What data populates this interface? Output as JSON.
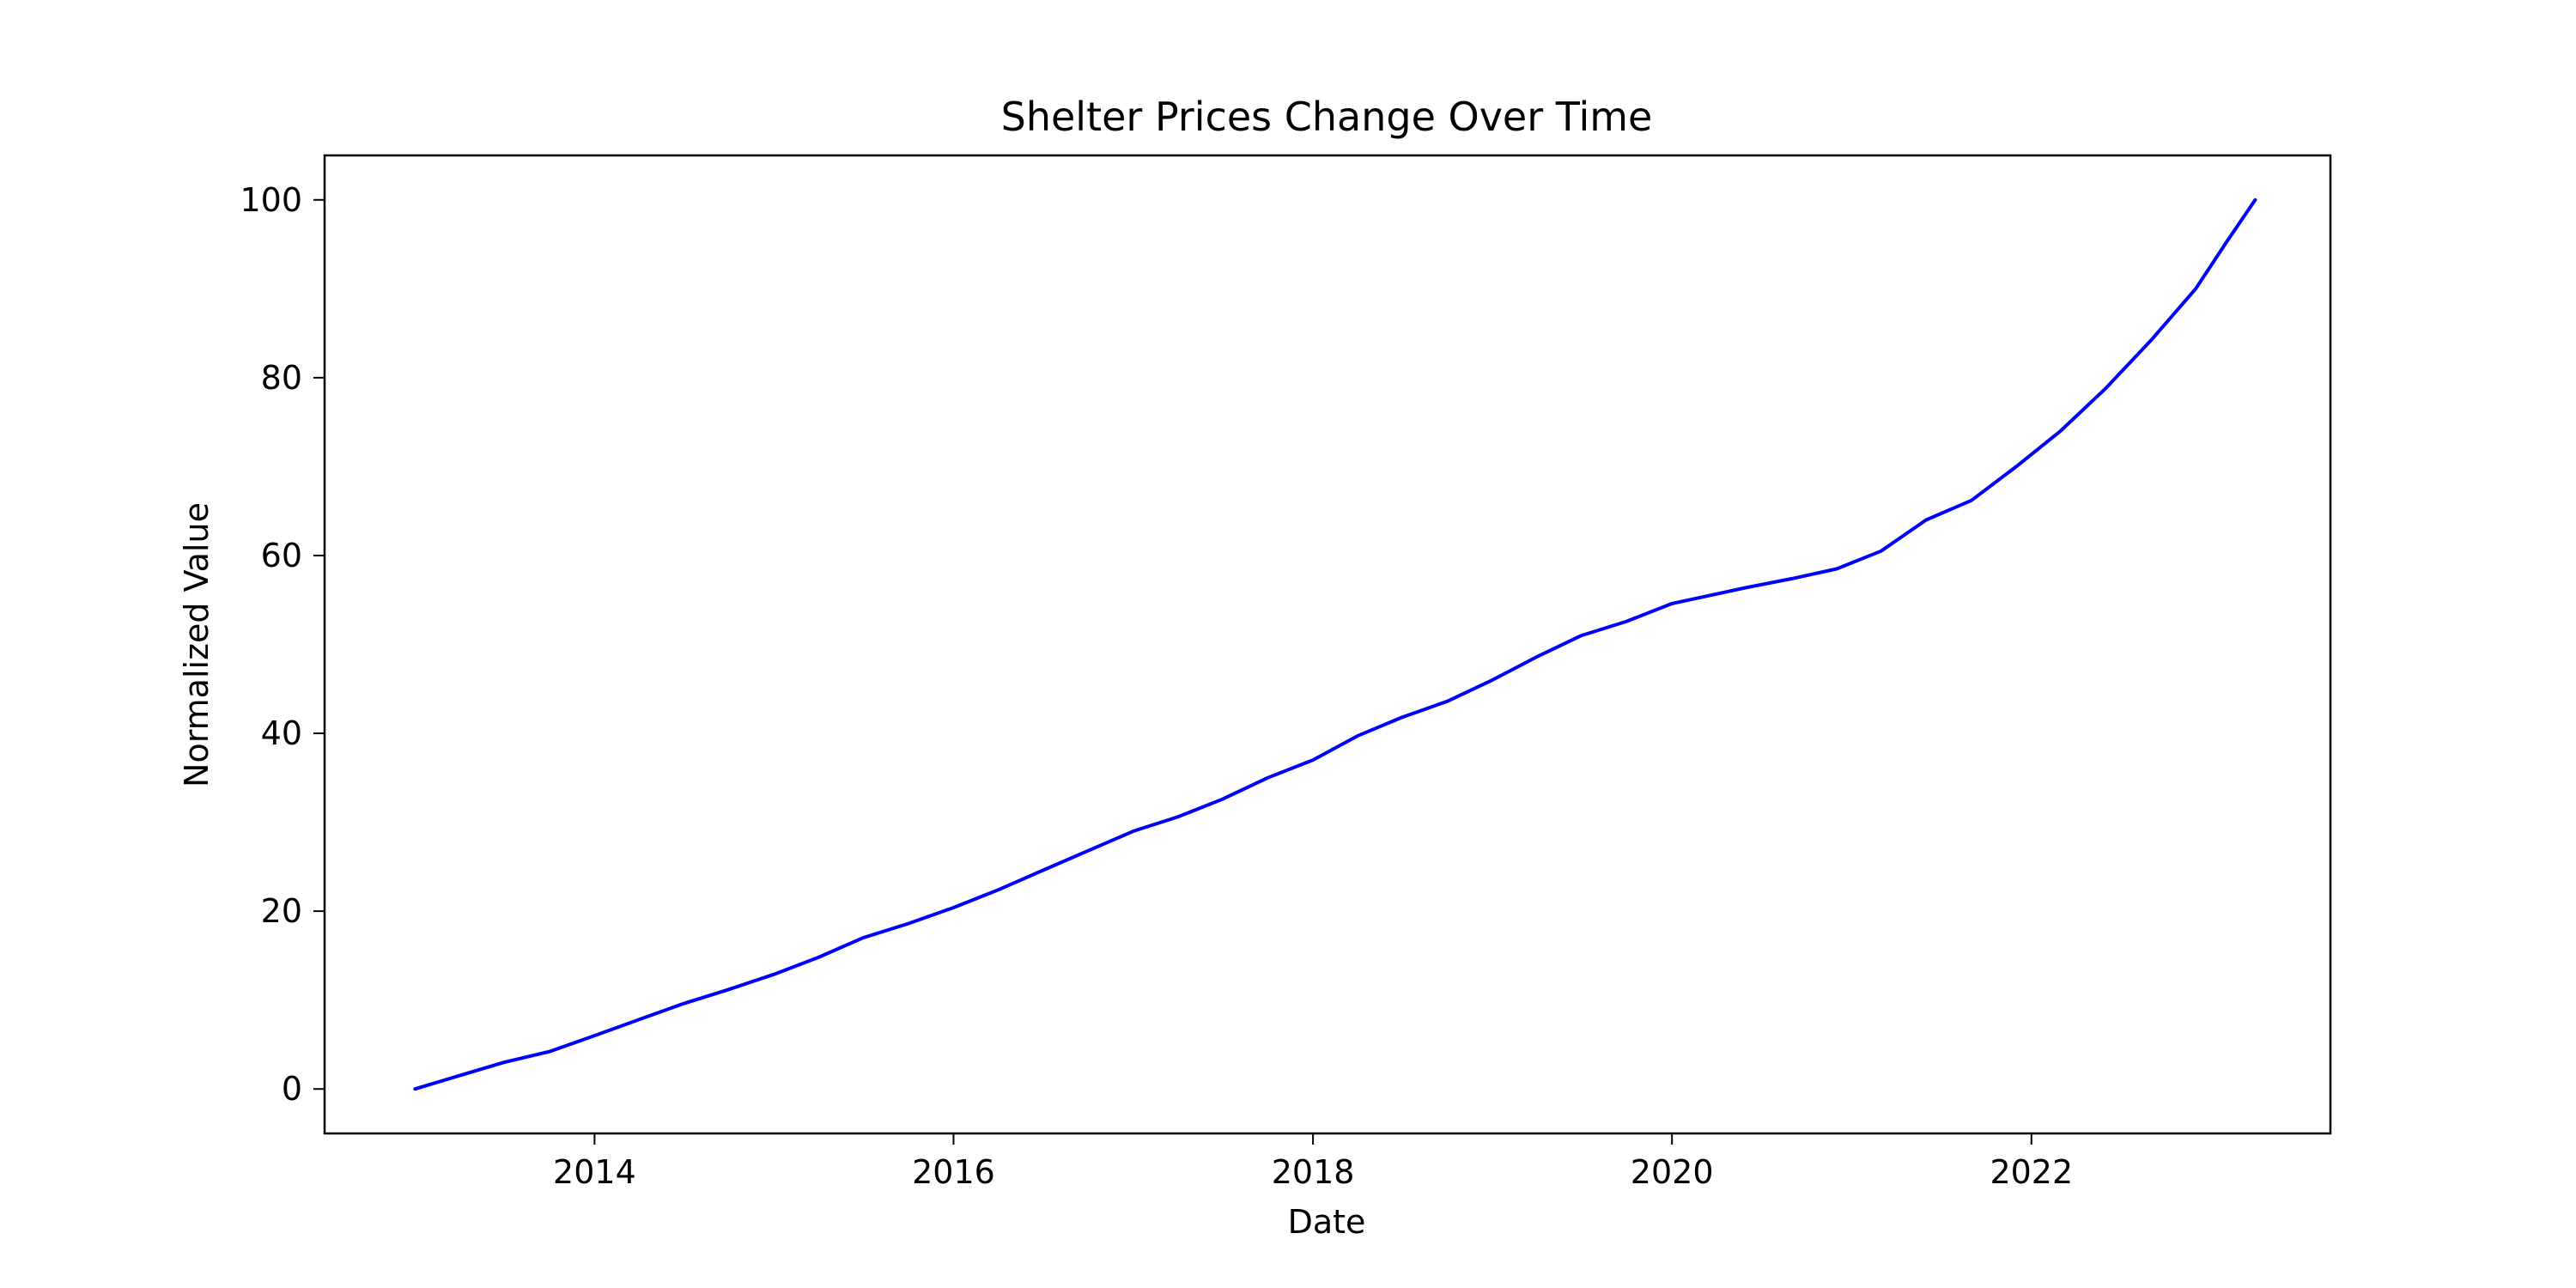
{
  "chart_data": {
    "type": "line",
    "title": "Shelter Prices Change Over Time",
    "xlabel": "Date",
    "ylabel": "Normalized Value",
    "xlim": [
      "2012-07-01",
      "2023-09-01"
    ],
    "ylim": [
      -5,
      105
    ],
    "grid": false,
    "x_ticks": [
      {
        "value": "2014-01-01",
        "label": "2014"
      },
      {
        "value": "2016-01-01",
        "label": "2016"
      },
      {
        "value": "2018-01-01",
        "label": "2018"
      },
      {
        "value": "2020-01-01",
        "label": "2020"
      },
      {
        "value": "2022-01-01",
        "label": "2022"
      }
    ],
    "y_ticks": [
      {
        "value": 0,
        "label": "0"
      },
      {
        "value": 20,
        "label": "20"
      },
      {
        "value": 40,
        "label": "40"
      },
      {
        "value": 60,
        "label": "60"
      },
      {
        "value": 80,
        "label": "80"
      },
      {
        "value": 100,
        "label": "100"
      }
    ],
    "series": [
      {
        "color": "#0000ff",
        "x": [
          "2013-01-01",
          "2013-04-01",
          "2013-07-01",
          "2013-10-01",
          "2014-01-01",
          "2014-04-01",
          "2014-07-01",
          "2014-10-01",
          "2015-01-01",
          "2015-04-01",
          "2015-07-01",
          "2015-10-01",
          "2016-01-01",
          "2016-04-01",
          "2016-07-01",
          "2016-10-01",
          "2017-01-01",
          "2017-04-01",
          "2017-07-01",
          "2017-10-01",
          "2018-01-01",
          "2018-04-01",
          "2018-07-01",
          "2018-10-01",
          "2019-01-01",
          "2019-04-01",
          "2019-07-01",
          "2019-10-01",
          "2020-01-01",
          "2020-03-01",
          "2020-06-01",
          "2020-09-01",
          "2020-12-01",
          "2021-03-01",
          "2021-06-01",
          "2021-09-01",
          "2021-12-01",
          "2022-03-01",
          "2022-06-01",
          "2022-09-01",
          "2022-12-01",
          "2023-02-01",
          "2023-04-01"
        ],
        "values": [
          0.0,
          1.5,
          3.0,
          4.2,
          6.0,
          7.8,
          9.6,
          11.2,
          12.9,
          14.8,
          17.0,
          18.6,
          20.4,
          22.4,
          24.6,
          26.8,
          29.0,
          30.6,
          32.6,
          35.0,
          37.0,
          39.7,
          41.8,
          43.6,
          46.0,
          48.6,
          51.0,
          52.6,
          54.6,
          55.3,
          56.4,
          57.4,
          58.5,
          60.5,
          64.0,
          66.2,
          70.0,
          74.0,
          78.8,
          84.2,
          90.0,
          95.2,
          100.0
        ]
      }
    ]
  }
}
